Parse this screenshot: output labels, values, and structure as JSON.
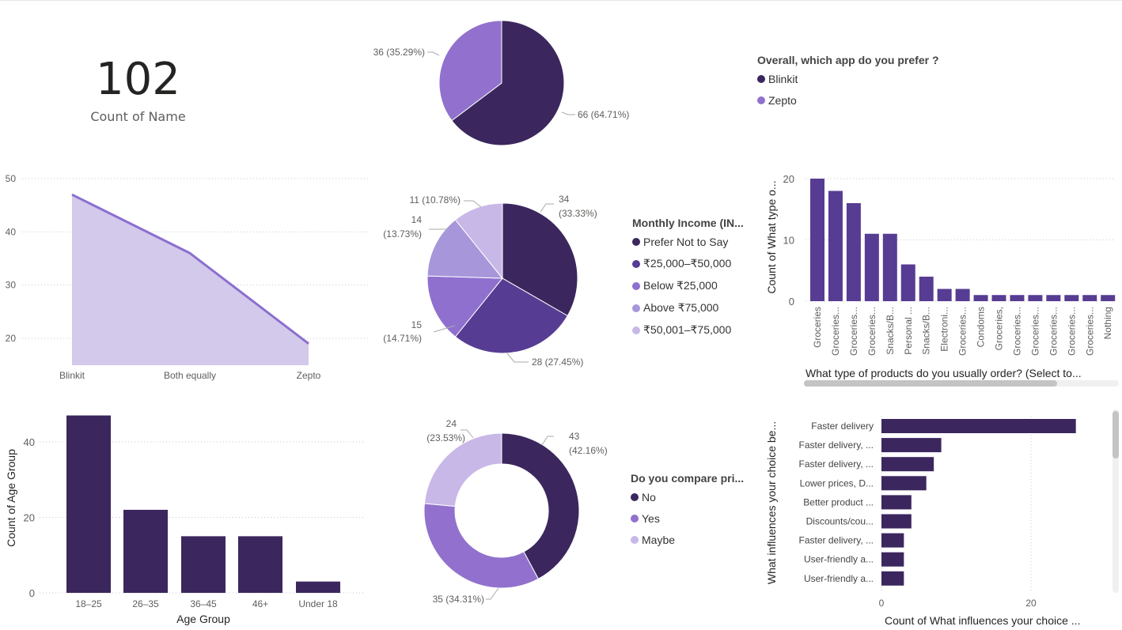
{
  "kpi": {
    "value": "102",
    "label": "Count of Name"
  },
  "chart_data": [
    {
      "id": "app-pref-pie",
      "type": "pie",
      "slices": [
        {
          "name": "Blinkit",
          "value": 66,
          "label": "66 (64.71%)",
          "color": "#3b275e"
        },
        {
          "name": "Zepto",
          "value": 36,
          "label": "36 (35.29%)",
          "color": "#9171cd"
        }
      ],
      "legend": {
        "title": "Overall, which app do you prefer ?",
        "placement": "right"
      }
    },
    {
      "id": "area-chart",
      "type": "area",
      "categories": [
        "Blinkit",
        "Both equally",
        "Zepto"
      ],
      "values": [
        47,
        36,
        19
      ],
      "yticks": [
        "50",
        "40",
        "30",
        "20"
      ],
      "ylim": [
        16,
        52
      ],
      "color": "#8b6fd0",
      "fill": "#d3c9ea"
    },
    {
      "id": "income-pie",
      "type": "pie",
      "slices": [
        {
          "name": "Prefer Not to Say",
          "value": 34,
          "label1": "34",
          "label2": "(33.33%)",
          "color": "#3b275e"
        },
        {
          "name": "₹25,000–₹50,000",
          "value": 28,
          "label1": "28 (27.45%)",
          "label2": "",
          "color": "#573c93"
        },
        {
          "name": "Below ₹25,000",
          "value": 15,
          "label1": "15",
          "label2": "(14.71%)",
          "color": "#8f70cf"
        },
        {
          "name": "Above ₹75,000",
          "value": 14,
          "label1": "14",
          "label2": "(13.73%)",
          "color": "#a896db"
        },
        {
          "name": "₹50,001–₹75,000",
          "value": 11,
          "label1": "11 (10.78%)",
          "label2": "",
          "color": "#c8b8e7"
        }
      ],
      "legend": {
        "title": "Monthly Income (IN...",
        "placement": "right"
      }
    },
    {
      "id": "products-bar",
      "type": "bar",
      "categories": [
        "Groceries",
        "Groceries...",
        "Groceries...",
        "Groceries...",
        "Snacks/B...",
        "Personal ...",
        "Snacks/B...",
        "Electroni...",
        "Groceries...",
        "Condoms",
        "Groceries,",
        "Groceries...",
        "Groceries...",
        "Groceries...",
        "Groceries...",
        "Groceries...",
        "Nothing"
      ],
      "values": [
        20,
        18,
        16,
        11,
        11,
        6,
        4,
        2,
        2,
        1,
        1,
        1,
        1,
        1,
        1,
        1,
        1
      ],
      "yticks": [
        "20",
        "10",
        "0"
      ],
      "ylim": [
        0,
        21
      ],
      "ylabel": "Count of What type o...",
      "xlabel": "What type of products do you usually order? (Select to...",
      "color": "#573c93"
    },
    {
      "id": "age-bar",
      "type": "bar",
      "categories": [
        "18–25",
        "26–35",
        "36–45",
        "46+",
        "Under 18"
      ],
      "values": [
        47,
        22,
        15,
        15,
        3
      ],
      "yticks": [
        "40",
        "20",
        "0"
      ],
      "ylim": [
        0,
        48
      ],
      "ylabel": "Count of Age Group",
      "xlabel": "Age Group",
      "color": "#3b275e"
    },
    {
      "id": "compare-donut",
      "type": "pie",
      "slices": [
        {
          "name": "No",
          "value": 43,
          "label1": "43",
          "label2": "(42.16%)",
          "color": "#3b275e"
        },
        {
          "name": "Yes",
          "value": 35,
          "label1": "35 (34.31%)",
          "label2": "",
          "color": "#9171cd"
        },
        {
          "name": "Maybe",
          "value": 24,
          "label1": "24",
          "label2": "(23.53%)",
          "color": "#c8b8e7"
        }
      ],
      "legend": {
        "title": "Do you compare pri...",
        "placement": "right"
      }
    },
    {
      "id": "influence-bar",
      "type": "bar",
      "orientation": "horizontal",
      "categories": [
        "Faster delivery",
        "Faster delivery, ...",
        "Faster delivery, ...",
        "Lower prices, D...",
        "Better product ...",
        "Discounts/cou...",
        "Faster delivery, ...",
        "User-friendly a...",
        "User-friendly a..."
      ],
      "values": [
        26,
        8,
        7,
        6,
        4,
        4,
        3,
        3,
        3
      ],
      "xticks": [
        "0",
        "20"
      ],
      "xlim": [
        0,
        31
      ],
      "ylabel": "What influences your choice be...",
      "xlabel": "Count of What influences your choice ...",
      "color": "#3b275e"
    }
  ]
}
